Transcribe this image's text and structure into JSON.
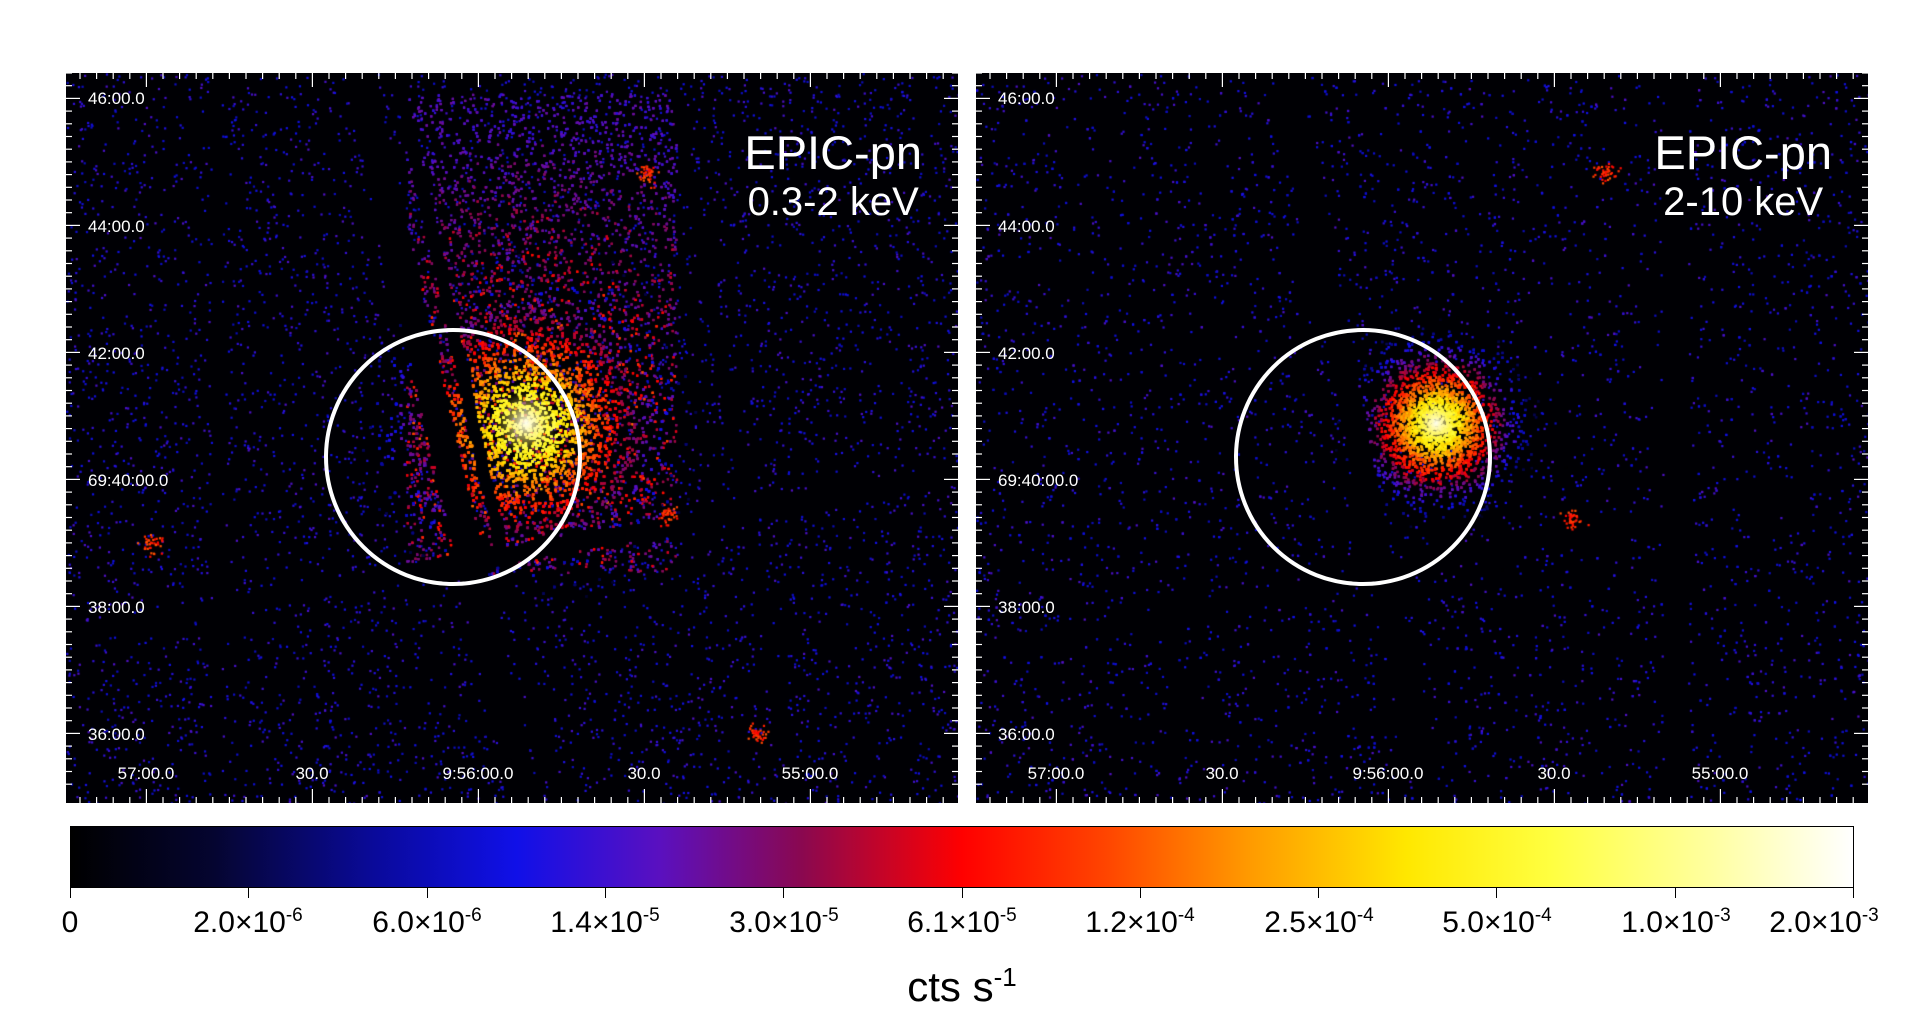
{
  "panels": [
    {
      "instrument": "EPIC-pn",
      "band": "0.3-2 keV",
      "dec_labels": [
        "46:00.0",
        "44:00.0",
        "42:00.0",
        "69:40:00.0",
        "38:00.0",
        "36:00.0"
      ],
      "ra_labels": [
        "57:00.0",
        "30.0",
        "9:56:00.0",
        "30.0",
        "55:00.0"
      ]
    },
    {
      "instrument": "EPIC-pn",
      "band": "2-10 keV",
      "dec_labels": [
        "46:00.0",
        "44:00.0",
        "42:00.0",
        "69:40:00.0",
        "38:00.0",
        "36:00.0"
      ],
      "ra_labels": [
        "57:00.0",
        "30.0",
        "9:56:00.0",
        "30.0",
        "55:00.0"
      ]
    }
  ],
  "colorbar": {
    "tick_labels": [
      {
        "mantissa": "0",
        "exponent": ""
      },
      {
        "mantissa": "2.0×10",
        "exponent": "-6"
      },
      {
        "mantissa": "6.0×10",
        "exponent": "-6"
      },
      {
        "mantissa": "1.4×10",
        "exponent": "-5"
      },
      {
        "mantissa": "3.0×10",
        "exponent": "-5"
      },
      {
        "mantissa": "6.1×10",
        "exponent": "-5"
      },
      {
        "mantissa": "1.2×10",
        "exponent": "-4"
      },
      {
        "mantissa": "2.5×10",
        "exponent": "-4"
      },
      {
        "mantissa": "5.0×10",
        "exponent": "-4"
      },
      {
        "mantissa": "1.0×10",
        "exponent": "-3"
      },
      {
        "mantissa": "2.0×10",
        "exponent": "-3"
      }
    ],
    "unit_base": "cts s",
    "unit_exponent": "-1"
  }
}
